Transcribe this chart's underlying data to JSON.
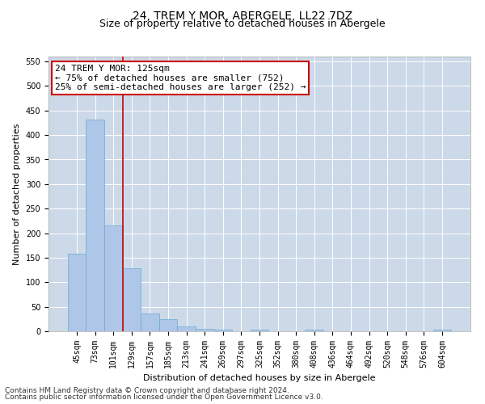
{
  "title": "24, TREM Y MOR, ABERGELE, LL22 7DZ",
  "subtitle": "Size of property relative to detached houses in Abergele",
  "xlabel": "Distribution of detached houses by size in Abergele",
  "ylabel": "Number of detached properties",
  "categories": [
    "45sqm",
    "73sqm",
    "101sqm",
    "129sqm",
    "157sqm",
    "185sqm",
    "213sqm",
    "241sqm",
    "269sqm",
    "297sqm",
    "325sqm",
    "352sqm",
    "380sqm",
    "408sqm",
    "436sqm",
    "464sqm",
    "492sqm",
    "520sqm",
    "548sqm",
    "576sqm",
    "604sqm"
  ],
  "values": [
    158,
    432,
    215,
    128,
    36,
    25,
    10,
    5,
    3,
    0,
    3,
    0,
    0,
    3,
    0,
    0,
    0,
    0,
    0,
    0,
    3
  ],
  "bar_color": "#aec6e8",
  "bar_edge_color": "#6aaad4",
  "vline_x_index": 2.5,
  "vline_color": "#cc0000",
  "annotation_line1": "24 TREM Y MOR: 125sqm",
  "annotation_line2": "← 75% of detached houses are smaller (752)",
  "annotation_line3": "25% of semi-detached houses are larger (252) →",
  "annotation_box_color": "#ffffff",
  "annotation_box_edge": "#cc0000",
  "ylim": [
    0,
    560
  ],
  "yticks": [
    0,
    50,
    100,
    150,
    200,
    250,
    300,
    350,
    400,
    450,
    500,
    550
  ],
  "background_color": "#ffffff",
  "grid_color": "#ccd9e8",
  "footer_line1": "Contains HM Land Registry data © Crown copyright and database right 2024.",
  "footer_line2": "Contains public sector information licensed under the Open Government Licence v3.0.",
  "title_fontsize": 10,
  "subtitle_fontsize": 9,
  "xlabel_fontsize": 8,
  "ylabel_fontsize": 8,
  "tick_fontsize": 7,
  "annotation_fontsize": 8,
  "footer_fontsize": 6.5
}
